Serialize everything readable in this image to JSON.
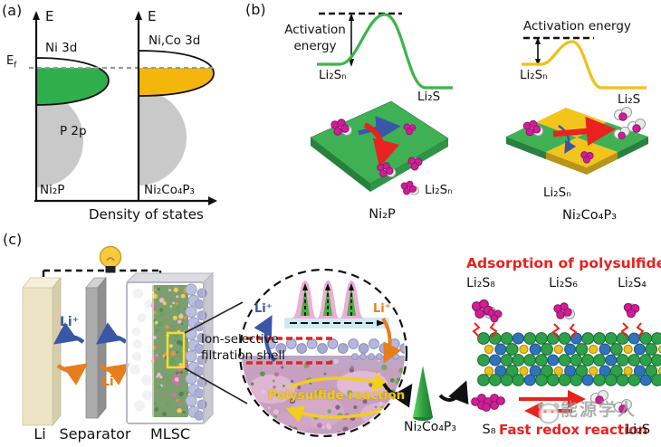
{
  "colors": {
    "green": "#2fae4d",
    "yellow": "#f5b60b",
    "gray_band": "#c9c9c9",
    "magenta": "#cf1f96",
    "blue_arrow": "#3a57a7",
    "orange_arrow": "#e87d1e",
    "red": "#e8221f",
    "lavender": "#aeb0d6",
    "cream": "#ece4c4",
    "yellow_text": "#eecb10"
  },
  "panel_a": {
    "tag": "(a)",
    "energy_axis": "E",
    "fermi_base": "E",
    "fermi_sub": "f",
    "left_band": "Ni 3d",
    "right_band": "Ni,Co 3d",
    "p_band": "P 2p",
    "left_material": "Ni₂P",
    "right_material": "Ni₂Co₄P₃",
    "x_axis": "Density of states"
  },
  "panel_b": {
    "tag": "(b)",
    "left": {
      "activation_line1": "Activation",
      "activation_line2": "energy",
      "reactant": "Li₂Sₙ",
      "product": "Li₂S",
      "surface_species": "Li₂Sₙ",
      "material": "Ni₂P"
    },
    "right": {
      "activation": "Activation energy",
      "reactant": "Li₂Sₙ",
      "product": "Li₂S",
      "surface_species": "Li₂Sₙ",
      "material": "Ni₂Co₄P₃"
    }
  },
  "panel_c": {
    "tag": "(c)",
    "anode": "Li",
    "separator": "Separator",
    "cathode": "MLSC",
    "li_ion": "Li⁺",
    "shell_line1": "Ion-selective",
    "shell_line2": "filtration shell",
    "polysulfide_reaction": "Polysulfide reaction",
    "catalyst": "Ni₂Co₄P₃",
    "adsorption_title": "Adsorption of polysulfides",
    "species": [
      "Li₂S₈",
      "Li₂S₆",
      "Li₂S₄"
    ],
    "sulfur": "S₈",
    "redox_label": "Fast redox reaction",
    "product": "Li₂S",
    "watermark": "能源学人"
  }
}
